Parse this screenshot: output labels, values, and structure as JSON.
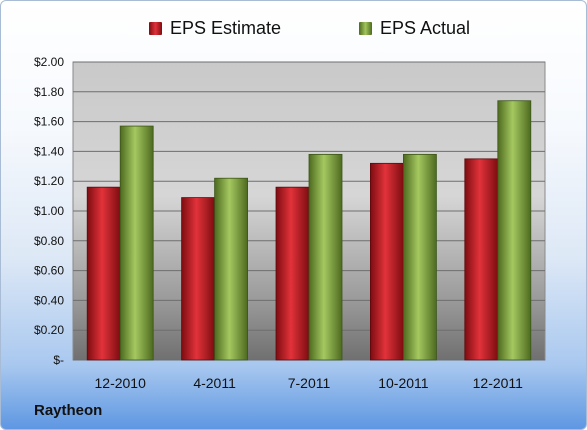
{
  "company": "Raytheon",
  "chart_data": {
    "type": "bar",
    "categories": [
      "12-2010",
      "4-2011",
      "7-2011",
      "10-2011",
      "12-2011"
    ],
    "series": [
      {
        "name": "EPS Estimate",
        "values": [
          1.16,
          1.09,
          1.16,
          1.32,
          1.35
        ],
        "color": "#c8141c"
      },
      {
        "name": "EPS Actual",
        "values": [
          1.57,
          1.22,
          1.38,
          1.38,
          1.74
        ],
        "color": "#7fa73c"
      }
    ],
    "y_ticks": [
      "$-",
      "$0.20",
      "$0.40",
      "$0.60",
      "$0.80",
      "$1.00",
      "$1.20",
      "$1.40",
      "$1.60",
      "$1.80",
      "$2.00"
    ],
    "ylim": [
      0,
      2.0
    ],
    "grid": true,
    "legend_position": "top"
  }
}
